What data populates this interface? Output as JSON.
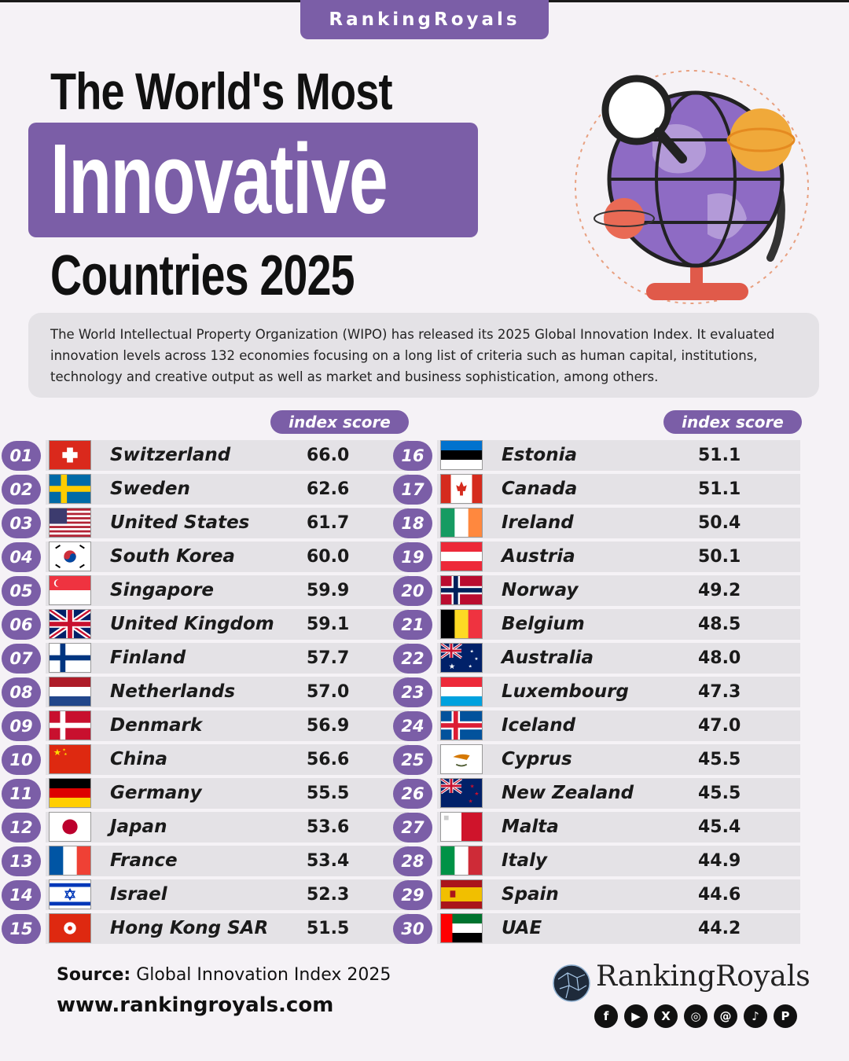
{
  "brand": "RankingRoyals",
  "title": {
    "line1": "The World's Most",
    "line2": "Innovative",
    "line3": "Countries 2025"
  },
  "description": "The World Intellectual Property Organization (WIPO) has released its 2025 Global Innovation Index. It evaluated innovation levels across 132 economies focusing on a long list of criteria such as human capital, institutions, technology and creative output as well as market and business sophistication, among others.",
  "column_header": "index score",
  "chart_data": {
    "type": "table",
    "title": "The World's Most Innovative Countries 2025",
    "columns": [
      "rank",
      "country",
      "index score"
    ],
    "rows": [
      {
        "rank": "01",
        "country": "Switzerland",
        "score": "66.0",
        "flag": "switzerland"
      },
      {
        "rank": "02",
        "country": "Sweden",
        "score": "62.6",
        "flag": "sweden"
      },
      {
        "rank": "03",
        "country": "United States",
        "score": "61.7",
        "flag": "usa"
      },
      {
        "rank": "04",
        "country": "South Korea",
        "score": "60.0",
        "flag": "south-korea"
      },
      {
        "rank": "05",
        "country": "Singapore",
        "score": "59.9",
        "flag": "singapore"
      },
      {
        "rank": "06",
        "country": "United Kingdom",
        "score": "59.1",
        "flag": "uk"
      },
      {
        "rank": "07",
        "country": "Finland",
        "score": "57.7",
        "flag": "finland"
      },
      {
        "rank": "08",
        "country": "Netherlands",
        "score": "57.0",
        "flag": "netherlands"
      },
      {
        "rank": "09",
        "country": "Denmark",
        "score": "56.9",
        "flag": "denmark"
      },
      {
        "rank": "10",
        "country": "China",
        "score": "56.6",
        "flag": "china"
      },
      {
        "rank": "11",
        "country": "Germany",
        "score": "55.5",
        "flag": "germany"
      },
      {
        "rank": "12",
        "country": "Japan",
        "score": "53.6",
        "flag": "japan"
      },
      {
        "rank": "13",
        "country": "France",
        "score": "53.4",
        "flag": "france"
      },
      {
        "rank": "14",
        "country": "Israel",
        "score": "52.3",
        "flag": "israel"
      },
      {
        "rank": "15",
        "country": "Hong Kong SAR",
        "score": "51.5",
        "flag": "hong-kong"
      },
      {
        "rank": "16",
        "country": "Estonia",
        "score": "51.1",
        "flag": "estonia"
      },
      {
        "rank": "17",
        "country": "Canada",
        "score": "51.1",
        "flag": "canada"
      },
      {
        "rank": "18",
        "country": "Ireland",
        "score": "50.4",
        "flag": "ireland"
      },
      {
        "rank": "19",
        "country": "Austria",
        "score": "50.1",
        "flag": "austria"
      },
      {
        "rank": "20",
        "country": "Norway",
        "score": "49.2",
        "flag": "norway"
      },
      {
        "rank": "21",
        "country": "Belgium",
        "score": "48.5",
        "flag": "belgium"
      },
      {
        "rank": "22",
        "country": "Australia",
        "score": "48.0",
        "flag": "australia"
      },
      {
        "rank": "23",
        "country": "Luxembourg",
        "score": "47.3",
        "flag": "luxembourg"
      },
      {
        "rank": "24",
        "country": "Iceland",
        "score": "47.0",
        "flag": "iceland"
      },
      {
        "rank": "25",
        "country": "Cyprus",
        "score": "45.5",
        "flag": "cyprus"
      },
      {
        "rank": "26",
        "country": "New Zealand",
        "score": "45.5",
        "flag": "new-zealand"
      },
      {
        "rank": "27",
        "country": "Malta",
        "score": "45.4",
        "flag": "malta"
      },
      {
        "rank": "28",
        "country": "Italy",
        "score": "44.9",
        "flag": "italy"
      },
      {
        "rank": "29",
        "country": "Spain",
        "score": "44.6",
        "flag": "spain"
      },
      {
        "rank": "30",
        "country": "UAE",
        "score": "44.2",
        "flag": "uae"
      }
    ]
  },
  "footer": {
    "source_label": "Source:",
    "source_text": "Global Innovation Index 2025",
    "url": "www.rankingroyals.com",
    "logo_text": "RankingRoyals",
    "social_icons": [
      "facebook-icon",
      "youtube-icon",
      "x-icon",
      "instagram-icon",
      "threads-icon",
      "tiktok-icon",
      "pinterest-icon"
    ]
  },
  "colors": {
    "accent": "#7b5ea7",
    "row_bg": "#e4e2e6",
    "page_bg": "#f5f2f6"
  }
}
